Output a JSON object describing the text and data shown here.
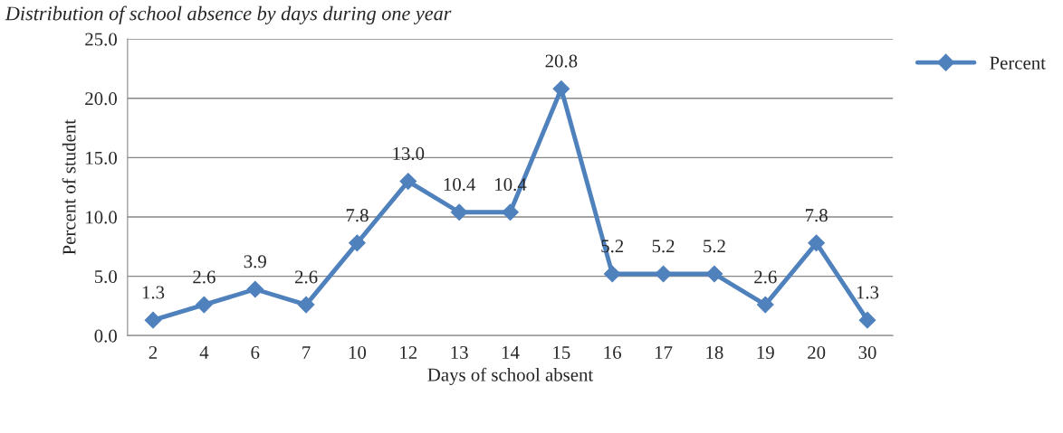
{
  "chart_data": {
    "type": "line",
    "title": "Distribution of school absence by days during one year",
    "xlabel": "Days of school absent",
    "ylabel": "Percent of student",
    "categories": [
      "2",
      "4",
      "6",
      "7",
      "10",
      "12",
      "13",
      "14",
      "15",
      "16",
      "17",
      "18",
      "19",
      "20",
      "30"
    ],
    "series": [
      {
        "name": "Percent",
        "color": "#4f81bd",
        "values": [
          1.3,
          2.6,
          3.9,
          2.6,
          7.8,
          13.0,
          10.4,
          10.4,
          20.8,
          5.2,
          5.2,
          5.2,
          2.6,
          7.8,
          1.3
        ],
        "value_labels": [
          "1.3",
          "2.6",
          "3.9",
          "2.6",
          "7.8",
          "13.0",
          "10.4",
          "10.4",
          "20.8",
          "5.2",
          "5.2",
          "5.2",
          "2.6",
          "7.8",
          "1.3"
        ]
      }
    ],
    "ylim": [
      0,
      25
    ],
    "yticks": [
      {
        "value": 0,
        "label": "0.0"
      },
      {
        "value": 5,
        "label": "5.0"
      },
      {
        "value": 10,
        "label": "10.0"
      },
      {
        "value": 15,
        "label": "15.0"
      },
      {
        "value": 20,
        "label": "20.0"
      },
      {
        "value": 25,
        "label": "25.0"
      }
    ],
    "grid": "y",
    "legend": "top right",
    "marker": "diamond",
    "line_style": "solid"
  }
}
